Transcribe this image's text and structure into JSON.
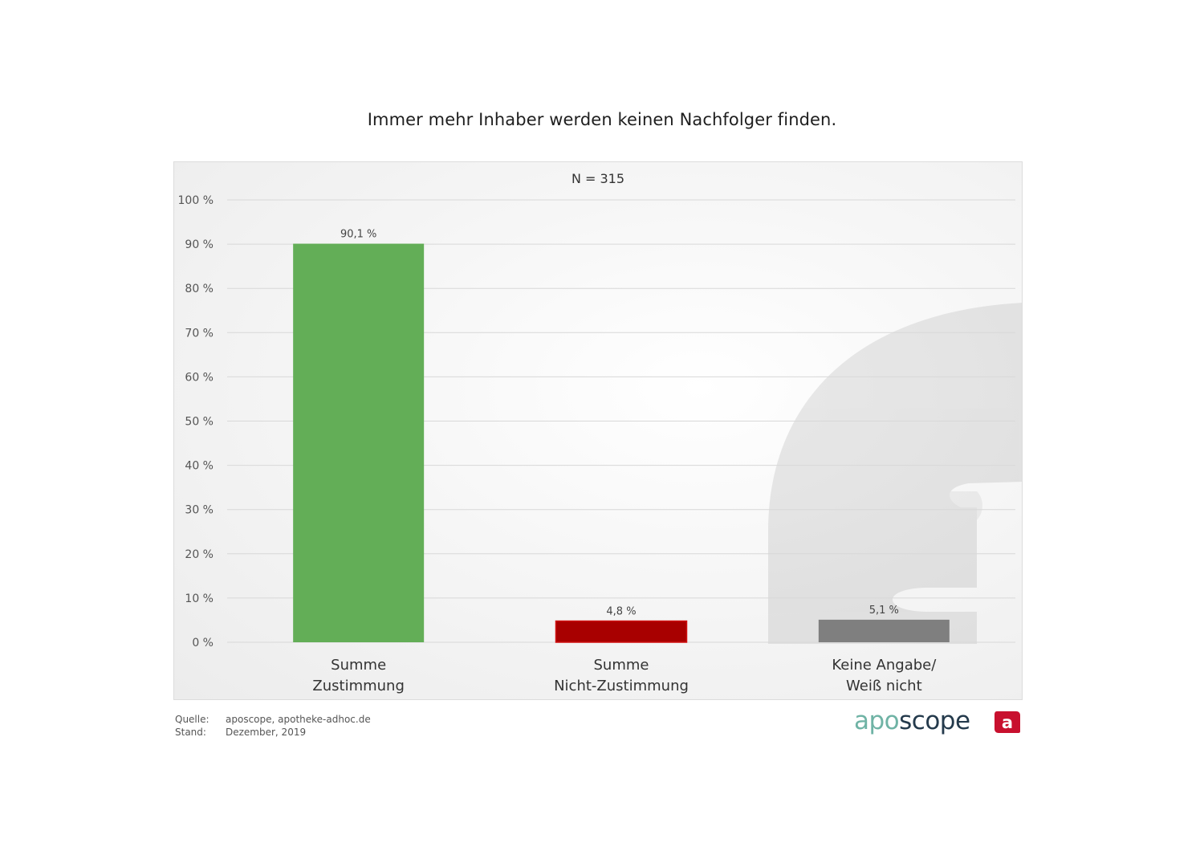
{
  "page": {
    "title": "Immer mehr Inhaber werden keinen Nachfolger finden."
  },
  "chart_data": {
    "type": "bar",
    "subtitle": "N = 315",
    "categories": [
      [
        "Summe",
        "Zustimmung"
      ],
      [
        "Summe",
        "Nicht-Zustimmung"
      ],
      [
        "Keine Angabe/",
        "Weiß nicht"
      ]
    ],
    "values": [
      90.1,
      4.8,
      5.1
    ],
    "value_labels": [
      "90,1 %",
      "4,8 %",
      "5,1 %"
    ],
    "colors": [
      "#63ae57",
      "#a80000",
      "#7f7f7f"
    ],
    "ylim": [
      0,
      100
    ],
    "yticks": [
      0,
      10,
      20,
      30,
      40,
      50,
      60,
      70,
      80,
      90,
      100
    ],
    "ytick_labels": [
      "0 %",
      "10 %",
      "20 %",
      "30 %",
      "40 %",
      "50 %",
      "60 %",
      "70 %",
      "80 %",
      "90 %",
      "100 %"
    ],
    "grid": true,
    "legend": "none"
  },
  "footer": {
    "source_key": "Quelle:",
    "source_value": "aposcope, apotheke-adhoc.de",
    "date_key": "Stand:",
    "date_value": "Dezember,  2019"
  },
  "logo": {
    "apo": "apo",
    "scope": "scope",
    "mark_letter": "a",
    "mark_color": "#c8102e"
  }
}
